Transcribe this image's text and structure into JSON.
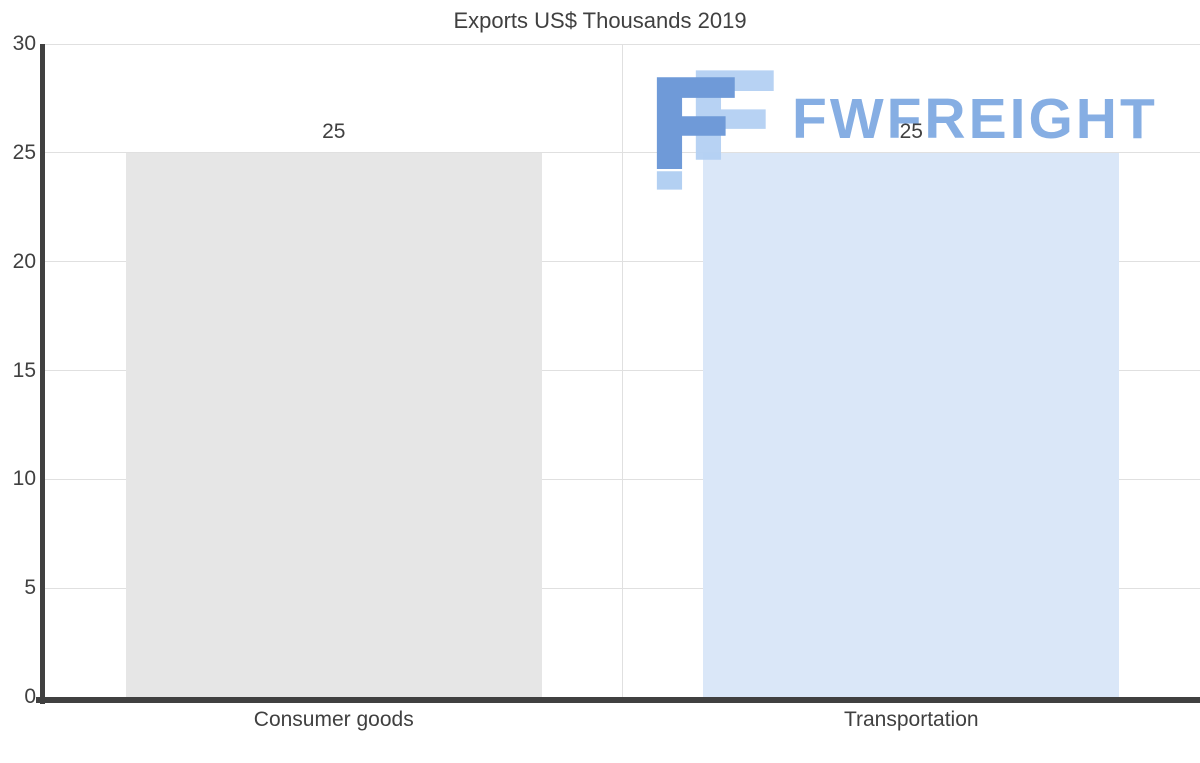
{
  "chart_data": {
    "type": "bar",
    "title": "Exports US$ Thousands 2019",
    "categories": [
      "Consumer goods",
      "Transportation"
    ],
    "values": [
      25,
      25
    ],
    "xlabel": "",
    "ylabel": "",
    "ylim": [
      0,
      30
    ],
    "yticks": [
      0,
      5,
      10,
      15,
      20,
      25,
      30
    ],
    "grid": true,
    "legend": "none",
    "bar_colors": [
      "#e6e6e6",
      "#dae7f8"
    ]
  },
  "watermark": {
    "text": "FWFREIGHT",
    "text_color": "#86aee3",
    "icon_dark": "#6f9ad8",
    "icon_light": "#b3d0f2"
  },
  "style": {
    "axis_color": "#404040",
    "grid_color": "#e0e0e0",
    "label_color": "#404040",
    "background": "#ffffff"
  }
}
